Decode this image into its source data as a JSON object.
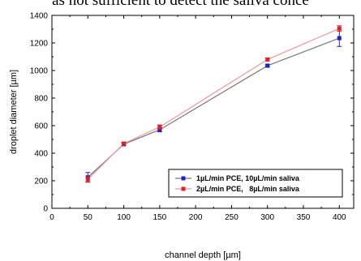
{
  "caption_fragment": "as not sufficient to detect the saliva conce",
  "chart_data": {
    "type": "line",
    "title": "",
    "xlabel": "channel depth [µm]",
    "ylabel": "droplet diameter [µm]",
    "xlim": [
      0,
      420
    ],
    "ylim": [
      0,
      1400
    ],
    "xticks": [
      0,
      50,
      100,
      150,
      200,
      250,
      300,
      350,
      400
    ],
    "yticks": [
      0,
      200,
      400,
      600,
      800,
      1000,
      1200,
      1400
    ],
    "grid": false,
    "legend_position": "bottom-right",
    "x": [
      50,
      100,
      150,
      300,
      400
    ],
    "series": [
      {
        "name": "1µL/min PCE, 10µL/min saliva",
        "color": "#1f1fcc",
        "line_color": "#777777",
        "values": [
          225,
          465,
          570,
          1035,
          1235
        ],
        "errors": [
          35,
          10,
          15,
          10,
          60
        ]
      },
      {
        "name": "2µL/min PCE,   8µL/min saliva",
        "color": "#dd2222",
        "line_color": "#ee9999",
        "values": [
          210,
          470,
          590,
          1080,
          1305
        ],
        "errors": [
          20,
          10,
          15,
          10,
          20
        ]
      }
    ]
  }
}
